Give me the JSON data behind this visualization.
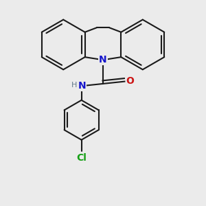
{
  "bg_color": "#ebebeb",
  "bond_color": "#1a1a1a",
  "N_color": "#1515cc",
  "O_color": "#cc1515",
  "Cl_color": "#15a015",
  "NH_color": "#607888",
  "lw": 1.5,
  "dbo": 0.055,
  "xlim": [
    -1.55,
    1.55
  ],
  "ylim": [
    -1.95,
    1.65
  ]
}
